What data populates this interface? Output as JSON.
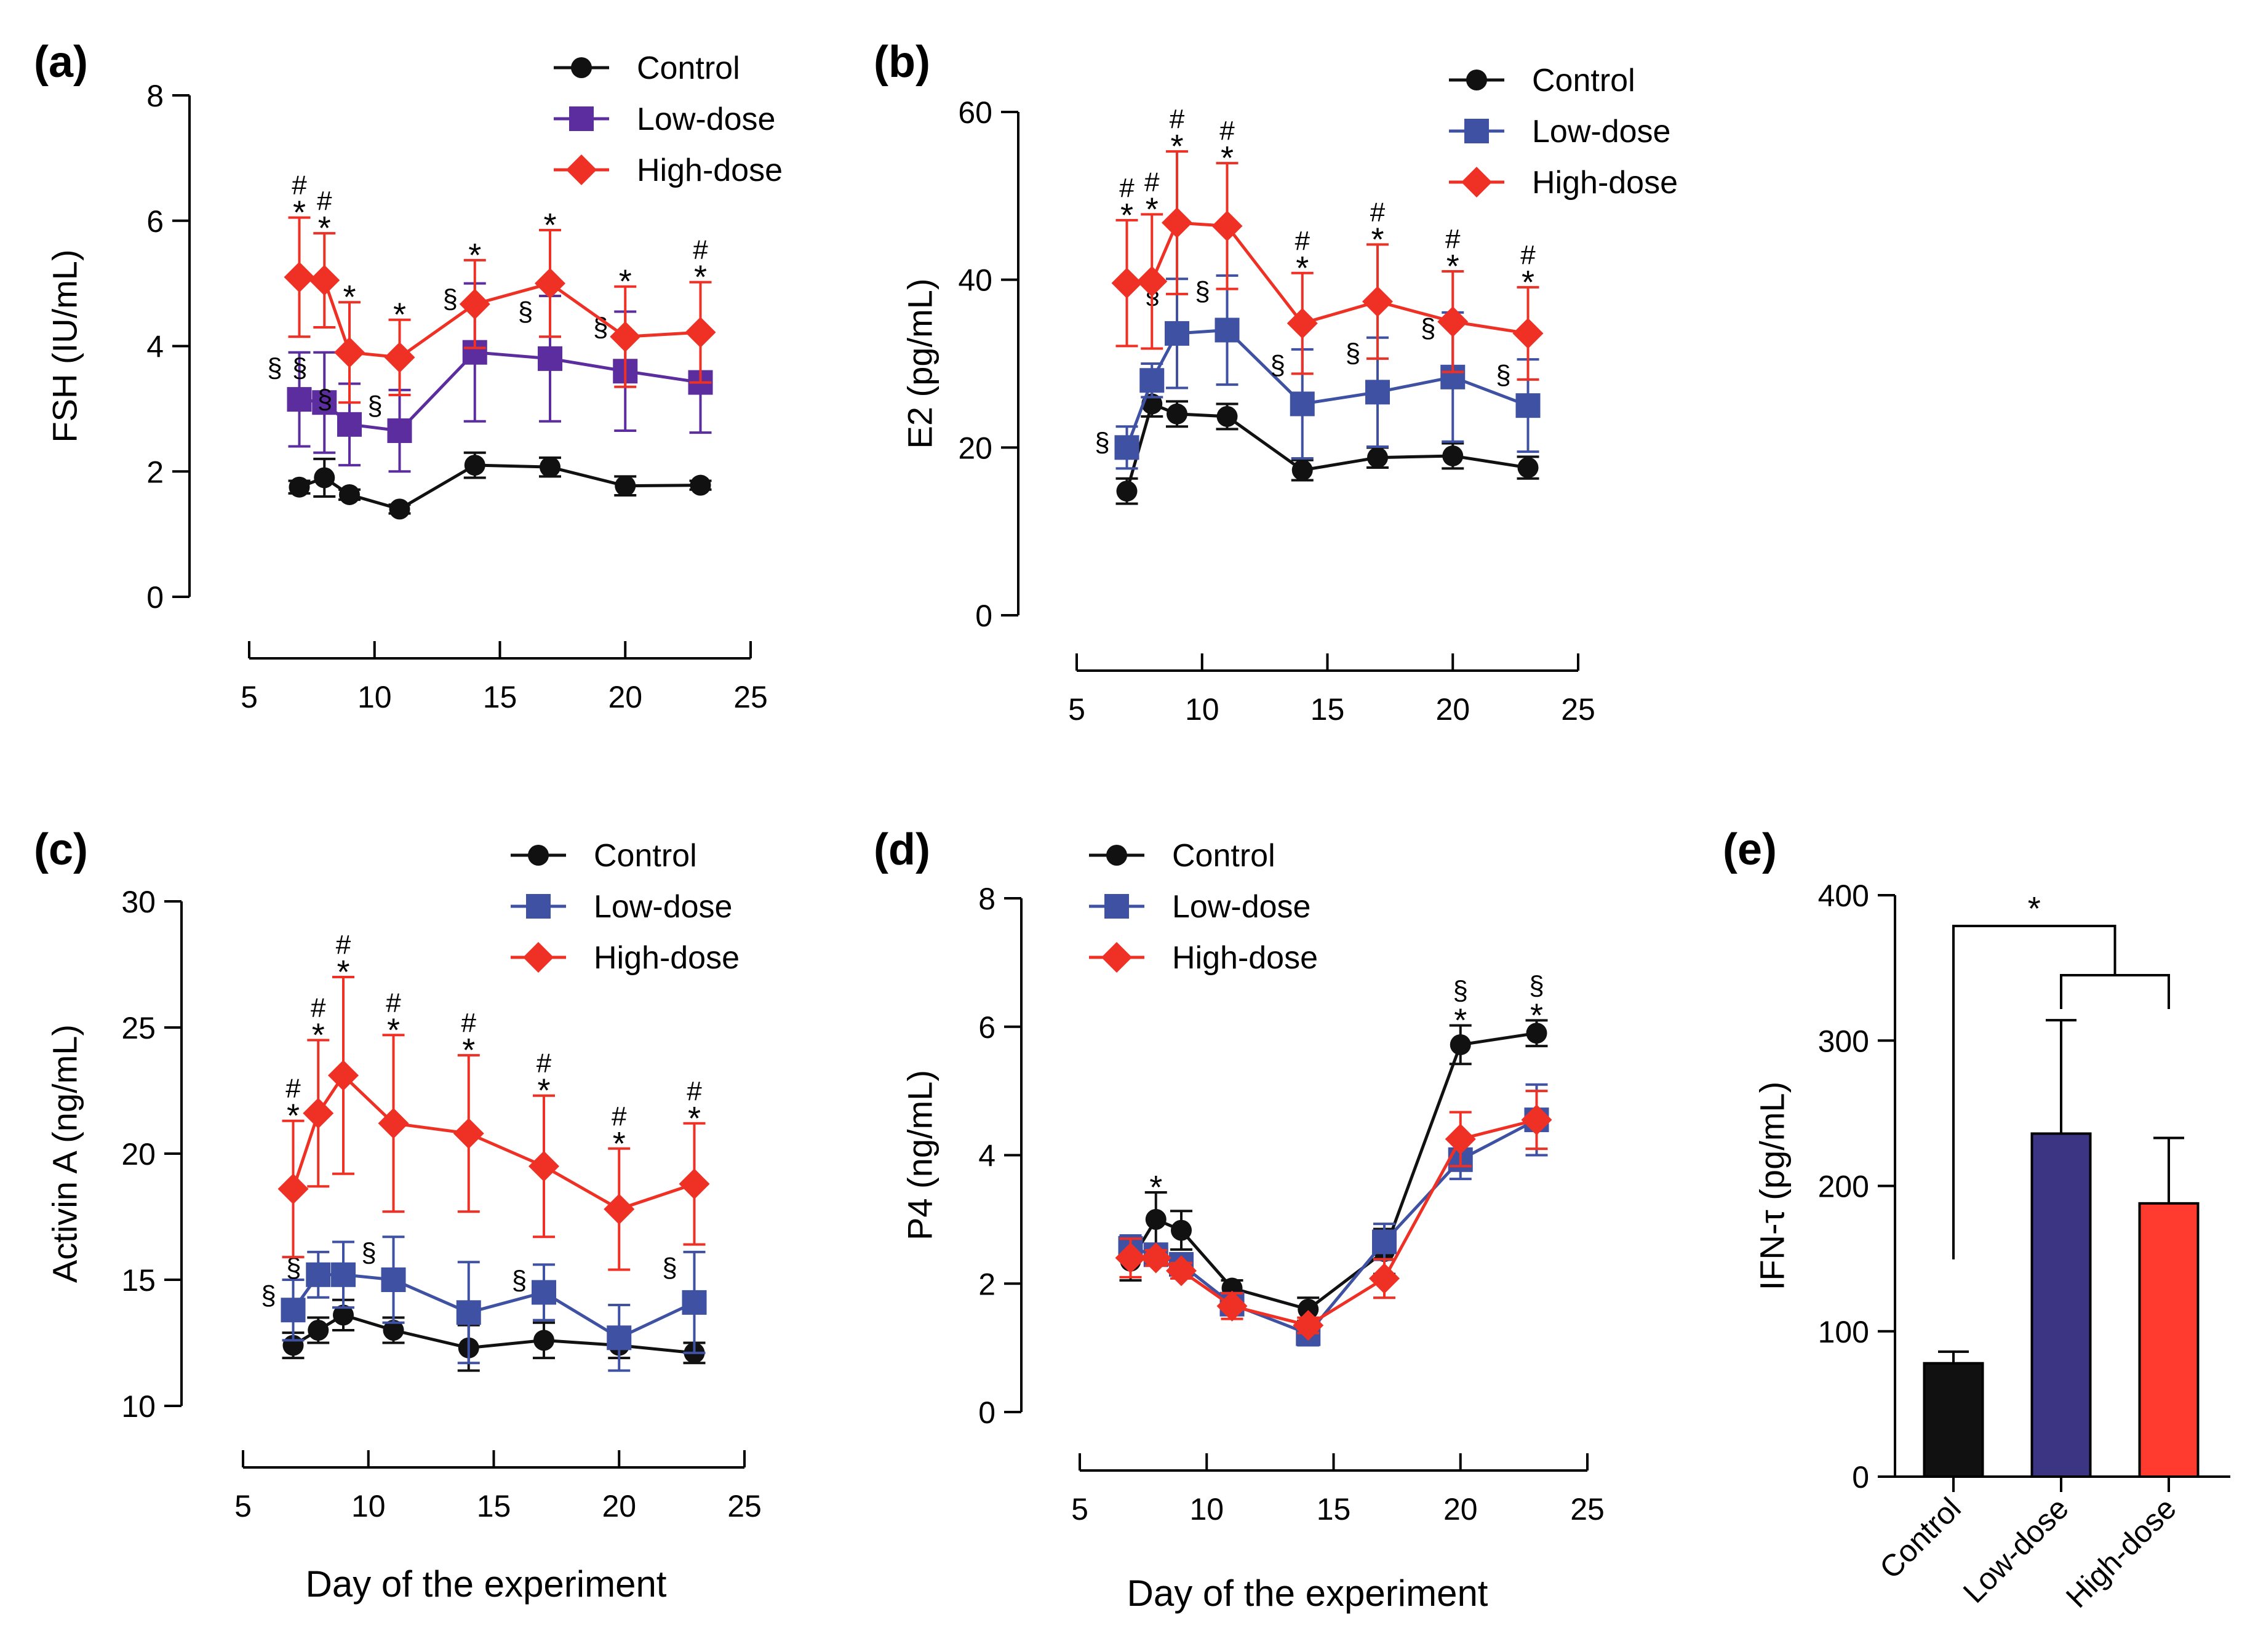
{
  "chart_data": [
    {
      "panel": "(a)",
      "type": "line",
      "ylabel": "FSH (IU/mL)",
      "xlabel": "",
      "ylim": [
        0,
        8
      ],
      "yticks": [
        0,
        2,
        4,
        6,
        8
      ],
      "xlim": [
        5,
        25
      ],
      "xticks": [
        5,
        10,
        15,
        20,
        25
      ],
      "legend": [
        "Control",
        "Low-dose",
        "High-dose"
      ],
      "legend_position": "top-right",
      "x": [
        7,
        8,
        9,
        11,
        14,
        17,
        20,
        23
      ],
      "series": [
        {
          "name": "Control",
          "color": "#111111",
          "marker": "circle",
          "values": [
            1.75,
            1.9,
            1.63,
            1.4,
            2.1,
            2.07,
            1.77,
            1.78
          ],
          "errors": [
            0.1,
            0.3,
            0.08,
            0.07,
            0.2,
            0.15,
            0.15,
            0.07
          ]
        },
        {
          "name": "Low-dose",
          "color": "#5b2d9e",
          "marker": "square",
          "values": [
            3.15,
            3.1,
            2.75,
            2.65,
            3.9,
            3.8,
            3.6,
            3.42
          ],
          "errors": [
            0.75,
            0.8,
            0.65,
            0.65,
            1.1,
            1.0,
            0.95,
            0.8
          ],
          "markers_sig": [
            "§",
            "§",
            "§",
            "§",
            "§",
            "§",
            "§",
            ""
          ]
        },
        {
          "name": "High-dose",
          "color": "#ee3124",
          "marker": "diamond",
          "values": [
            5.1,
            5.05,
            3.9,
            3.82,
            4.67,
            5.0,
            4.15,
            4.22
          ],
          "errors": [
            0.95,
            0.75,
            0.8,
            0.6,
            0.7,
            0.85,
            0.8,
            0.8
          ],
          "markers_sig": [
            "*",
            "*",
            "*",
            "*",
            "*",
            "*",
            "*",
            "*"
          ],
          "markers_hash": [
            "#",
            "#",
            "",
            "",
            "",
            "",
            "",
            "#"
          ]
        }
      ]
    },
    {
      "panel": "(b)",
      "type": "line",
      "ylabel": "E2 (pg/mL)",
      "xlabel": "",
      "ylim": [
        0,
        60
      ],
      "yticks": [
        0,
        20,
        40,
        60
      ],
      "xlim": [
        5,
        25
      ],
      "xticks": [
        5,
        10,
        15,
        20,
        25
      ],
      "legend": [
        "Control",
        "Low-dose",
        "High-dose"
      ],
      "legend_position": "top-right",
      "x": [
        7,
        8,
        9,
        11,
        14,
        17,
        20,
        23
      ],
      "series": [
        {
          "name": "Control",
          "color": "#111111",
          "marker": "circle",
          "values": [
            14.8,
            25.2,
            24.0,
            23.7,
            17.3,
            18.8,
            19.0,
            17.6
          ],
          "errors": [
            1.5,
            1.5,
            1.5,
            1.5,
            1.2,
            1.2,
            1.5,
            1.3
          ]
        },
        {
          "name": "Low-dose",
          "color": "#3f51a3",
          "marker": "square",
          "values": [
            20.0,
            28.0,
            33.6,
            34.0,
            25.2,
            26.6,
            28.4,
            25.0
          ],
          "errors": [
            2.5,
            2.0,
            6.5,
            6.5,
            6.5,
            6.5,
            7.7,
            5.5
          ],
          "markers_sig": [
            "§",
            "",
            "§",
            "§",
            "§",
            "§",
            "§",
            "§"
          ]
        },
        {
          "name": "High-dose",
          "color": "#ee3124",
          "marker": "diamond",
          "values": [
            39.6,
            39.8,
            46.8,
            46.4,
            34.8,
            37.4,
            35.0,
            33.6
          ],
          "errors": [
            7.5,
            8.0,
            8.5,
            7.5,
            6.0,
            6.8,
            6.0,
            5.5
          ],
          "markers_sig": [
            "*",
            "*",
            "*",
            "*",
            "*",
            "*",
            "*",
            "*"
          ],
          "markers_hash": [
            "#",
            "#",
            "#",
            "#",
            "#",
            "#",
            "#",
            "#"
          ]
        }
      ]
    },
    {
      "panel": "(c)",
      "type": "line",
      "ylabel": "Activin A (ng/mL)",
      "xlabel": "Day of the experiment",
      "ylim": [
        10,
        30
      ],
      "yticks": [
        10,
        15,
        20,
        25,
        30
      ],
      "xlim": [
        5,
        25
      ],
      "xticks": [
        5,
        10,
        15,
        20,
        25
      ],
      "legend": [
        "Control",
        "Low-dose",
        "High-dose"
      ],
      "legend_position": "top-right",
      "x": [
        7,
        8,
        9,
        11,
        14,
        17,
        20,
        23
      ],
      "series": [
        {
          "name": "Control",
          "color": "#111111",
          "marker": "circle",
          "values": [
            12.4,
            13.0,
            13.6,
            13.0,
            12.3,
            12.6,
            12.4,
            12.1
          ],
          "errors": [
            0.5,
            0.5,
            0.6,
            0.5,
            0.9,
            0.7,
            0.5,
            0.4
          ]
        },
        {
          "name": "Low-dose",
          "color": "#3f51a3",
          "marker": "square",
          "values": [
            13.8,
            15.2,
            15.2,
            15.0,
            13.7,
            14.5,
            12.7,
            14.1
          ],
          "errors": [
            1.2,
            0.9,
            1.3,
            1.7,
            2.0,
            1.1,
            1.3,
            2.0
          ],
          "markers_sig": [
            "§",
            "§",
            "",
            "§",
            "",
            "§",
            "",
            "§"
          ]
        },
        {
          "name": "High-dose",
          "color": "#ee3124",
          "marker": "diamond",
          "values": [
            18.6,
            21.6,
            23.1,
            21.2,
            20.8,
            19.5,
            17.8,
            18.8
          ],
          "errors": [
            2.7,
            2.9,
            3.9,
            3.5,
            3.1,
            2.8,
            2.4,
            2.4
          ],
          "markers_sig": [
            "*",
            "*",
            "*",
            "*",
            "*",
            "*",
            "*",
            "*"
          ],
          "markers_hash": [
            "#",
            "#",
            "#",
            "#",
            "#",
            "#",
            "#",
            "#"
          ]
        }
      ]
    },
    {
      "panel": "(d)",
      "type": "line",
      "ylabel": "P4 (ng/mL)",
      "xlabel": "Day of the experiment",
      "ylim": [
        0,
        8
      ],
      "yticks": [
        0,
        2,
        4,
        6,
        8
      ],
      "xlim": [
        5,
        25
      ],
      "xticks": [
        5,
        10,
        15,
        20,
        25
      ],
      "legend": [
        "Control",
        "Low-dose",
        "High-dose"
      ],
      "legend_position": "top-left",
      "x": [
        7,
        8,
        9,
        11,
        14,
        17,
        20,
        23
      ],
      "series": [
        {
          "name": "Control",
          "color": "#111111",
          "marker": "circle",
          "values": [
            2.35,
            3.0,
            2.83,
            1.93,
            1.6,
            2.5,
            5.72,
            5.9
          ],
          "errors": [
            0.3,
            0.42,
            0.3,
            0.12,
            0.18,
            0.35,
            0.3,
            0.2
          ],
          "markers_sig": [
            "",
            "*",
            "",
            "",
            "",
            "",
            "*",
            "*"
          ],
          "markers_sect": [
            "",
            "",
            "",
            "",
            "",
            "",
            "§",
            "§"
          ]
        },
        {
          "name": "Low-dose",
          "color": "#3f51a3",
          "marker": "square",
          "values": [
            2.55,
            2.45,
            2.3,
            1.68,
            1.22,
            2.65,
            3.93,
            4.55
          ],
          "errors": [
            0.2,
            0.12,
            0.15,
            0.15,
            0.18,
            0.28,
            0.3,
            0.55
          ]
        },
        {
          "name": "High-dose",
          "color": "#ee3124",
          "marker": "diamond",
          "values": [
            2.4,
            2.4,
            2.2,
            1.65,
            1.35,
            2.08,
            4.25,
            4.55
          ],
          "errors": [
            0.3,
            0.12,
            0.12,
            0.2,
            0.12,
            0.3,
            0.42,
            0.45
          ]
        }
      ]
    },
    {
      "panel": "(e)",
      "type": "bar",
      "ylabel": "IFN-τ (pg/mL)",
      "ylim": [
        0,
        400
      ],
      "yticks": [
        0,
        100,
        200,
        300,
        400
      ],
      "categories": [
        "Control",
        "Low-dose",
        "High-dose"
      ],
      "values": [
        78,
        236,
        188
      ],
      "errors": [
        8,
        78,
        45
      ],
      "colors": [
        "#111111",
        "#3b3583",
        "#ff3b2f"
      ],
      "significance": "*"
    }
  ]
}
